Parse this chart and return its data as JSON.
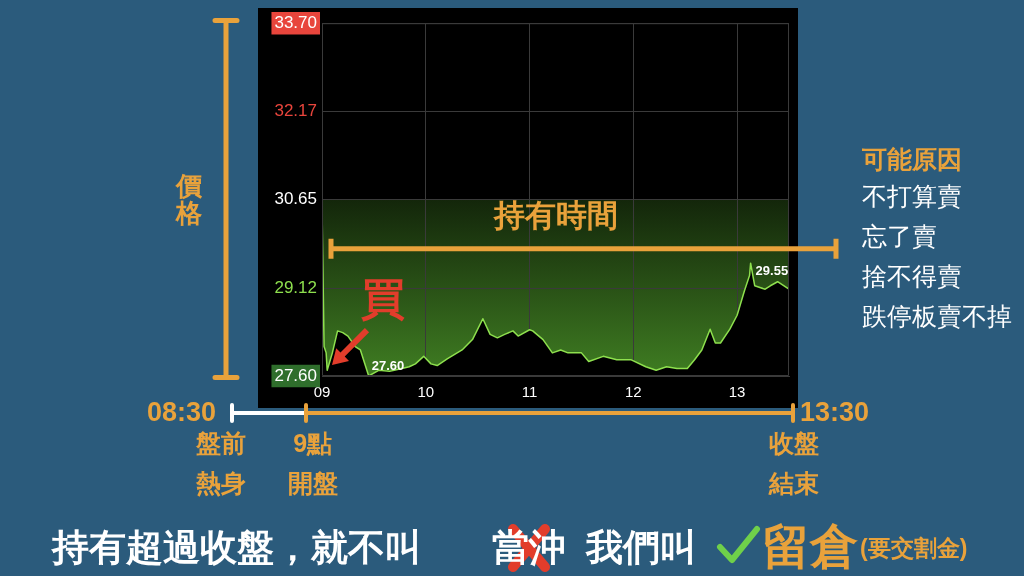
{
  "chart_data": {
    "type": "area",
    "x": [
      9.0,
      9.02,
      9.04,
      9.05,
      9.1,
      9.15,
      9.2,
      9.25,
      9.32,
      9.37,
      9.4,
      9.45,
      9.55,
      9.65,
      9.75,
      9.84,
      9.9,
      9.98,
      10.05,
      10.11,
      10.21,
      10.35,
      10.45,
      10.55,
      10.62,
      10.69,
      10.76,
      10.84,
      10.89,
      11.0,
      11.03,
      11.13,
      11.22,
      11.3,
      11.37,
      11.5,
      11.57,
      11.71,
      11.84,
      11.98,
      12.12,
      12.22,
      12.32,
      12.42,
      12.52,
      12.59,
      12.66,
      12.74,
      12.79,
      12.84,
      12.93,
      13.0,
      13.07,
      13.12,
      13.13,
      13.17,
      13.27,
      13.32,
      13.39,
      13.5
    ],
    "series": [
      {
        "color": "#8ee04e",
        "values": [
          30.55,
          28.11,
          28.0,
          27.7,
          28.0,
          28.38,
          28.35,
          28.29,
          28.11,
          28.05,
          27.88,
          27.6,
          27.7,
          27.68,
          27.72,
          27.76,
          27.81,
          27.94,
          27.81,
          27.78,
          27.9,
          28.05,
          28.23,
          28.59,
          28.32,
          28.26,
          28.32,
          28.38,
          28.29,
          28.4,
          28.38,
          28.23,
          28.0,
          28.05,
          28.0,
          28.0,
          27.85,
          27.94,
          27.88,
          27.88,
          27.76,
          27.7,
          27.76,
          27.73,
          27.73,
          27.88,
          28.05,
          28.41,
          28.17,
          28.17,
          28.41,
          28.65,
          29.07,
          29.34,
          29.55,
          29.16,
          29.1,
          29.16,
          29.23,
          29.1
        ]
      }
    ],
    "xlim": [
      9,
      13.5
    ],
    "xticks": [
      {
        "value": 9,
        "label": "09"
      },
      10,
      11,
      12,
      13
    ],
    "ylim": [
      27.6,
      33.7
    ],
    "yticks": [
      {
        "value": 27.6,
        "label": "27.60"
      },
      29.12,
      30.65,
      32.17,
      {
        "value": 33.7,
        "label": "33.70"
      }
    ],
    "ylabel": "價格",
    "grid": true,
    "marker": "none",
    "bands": [
      {
        "axis": "y",
        "from": 27.6,
        "to": 30.65,
        "color": "#3f7d22"
      }
    ],
    "ref_lines": [
      {
        "axis": "y",
        "value": 29.8,
        "label": "持有時間",
        "color": "#e9a23b"
      }
    ],
    "annotations": [
      {
        "text": "29.55",
        "x": 13.13,
        "y": 29.55
      },
      {
        "text": "27.60",
        "x": 9.45,
        "y": 27.6
      },
      {
        "text": "買",
        "x": 9.05,
        "y": 27.7
      },
      "08:30",
      "13:30",
      "盤前熱身",
      "9點開盤",
      "收盤結束",
      "可能原因",
      "不打算賣",
      "忘了賣",
      "捨不得賣",
      "跌停板賣不掉",
      "持有超過收盤，就不叫",
      "當沖",
      "我們叫",
      "留倉",
      "(要交割金)"
    ]
  }
}
